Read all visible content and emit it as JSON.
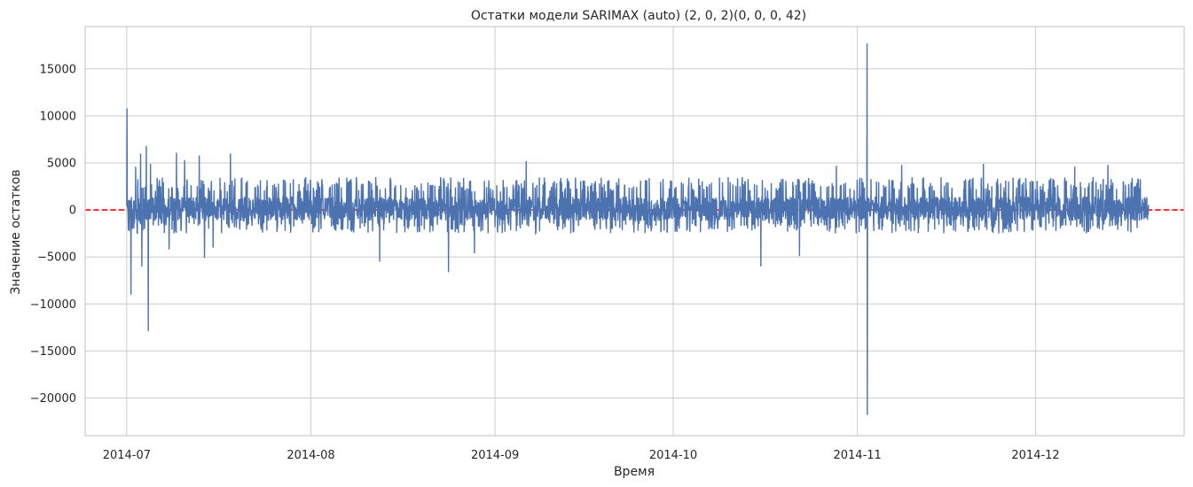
{
  "chart_data": {
    "type": "line",
    "title": "Остатки модели SARIMAX (auto) (2, 0, 2)(0, 0, 0, 42)",
    "xlabel": "Время",
    "ylabel": "Значение остатков",
    "x_range": [
      "2014-06-24",
      "2014-12-26"
    ],
    "ylim": [
      -24000,
      19500
    ],
    "x_ticks": [
      "2014-07",
      "2014-08",
      "2014-09",
      "2014-10",
      "2014-11",
      "2014-12"
    ],
    "y_ticks": [
      15000,
      10000,
      5000,
      0,
      -5000,
      -10000,
      -15000,
      -20000
    ],
    "grid": true,
    "legend": "none",
    "zero_line": {
      "value": 0,
      "color": "#ff0000",
      "style": "dashed"
    },
    "series": [
      {
        "color": "#4c72b0",
        "date_range": [
          "2014-07-01",
          "2014-12-20"
        ],
        "typical_band": [
          -2500,
          3500
        ],
        "spikes": [
          {
            "date": "2014-07-01",
            "value": 10800
          },
          {
            "date": "2014-07-01",
            "value": -9000
          },
          {
            "date": "2014-07-02",
            "value": 4600
          },
          {
            "date": "2014-07-03",
            "value": 6000
          },
          {
            "date": "2014-07-03",
            "value": -6000
          },
          {
            "date": "2014-07-04",
            "value": 6800
          },
          {
            "date": "2014-07-04",
            "value": -12900
          },
          {
            "date": "2014-07-05",
            "value": 4900
          },
          {
            "date": "2014-07-08",
            "value": -4200
          },
          {
            "date": "2014-07-09",
            "value": 6100
          },
          {
            "date": "2014-07-10",
            "value": 5300
          },
          {
            "date": "2014-07-13",
            "value": 5800
          },
          {
            "date": "2014-07-14",
            "value": -5100
          },
          {
            "date": "2014-07-15",
            "value": -4000
          },
          {
            "date": "2014-07-18",
            "value": 6000
          },
          {
            "date": "2014-08-12",
            "value": -5500
          },
          {
            "date": "2014-08-24",
            "value": -6600
          },
          {
            "date": "2014-08-28",
            "value": -4600
          },
          {
            "date": "2014-09-06",
            "value": 5200
          },
          {
            "date": "2014-10-22",
            "value": -4900
          },
          {
            "date": "2014-10-15",
            "value": -6000
          },
          {
            "date": "2014-10-28",
            "value": 4700
          },
          {
            "date": "2014-11-02",
            "value": 17700
          },
          {
            "date": "2014-11-02",
            "value": -21800
          },
          {
            "date": "2014-11-08",
            "value": 4800
          },
          {
            "date": "2014-11-22",
            "value": 4900
          },
          {
            "date": "2014-12-07",
            "value": 4600
          },
          {
            "date": "2014-12-13",
            "value": 4800
          }
        ]
      }
    ]
  }
}
